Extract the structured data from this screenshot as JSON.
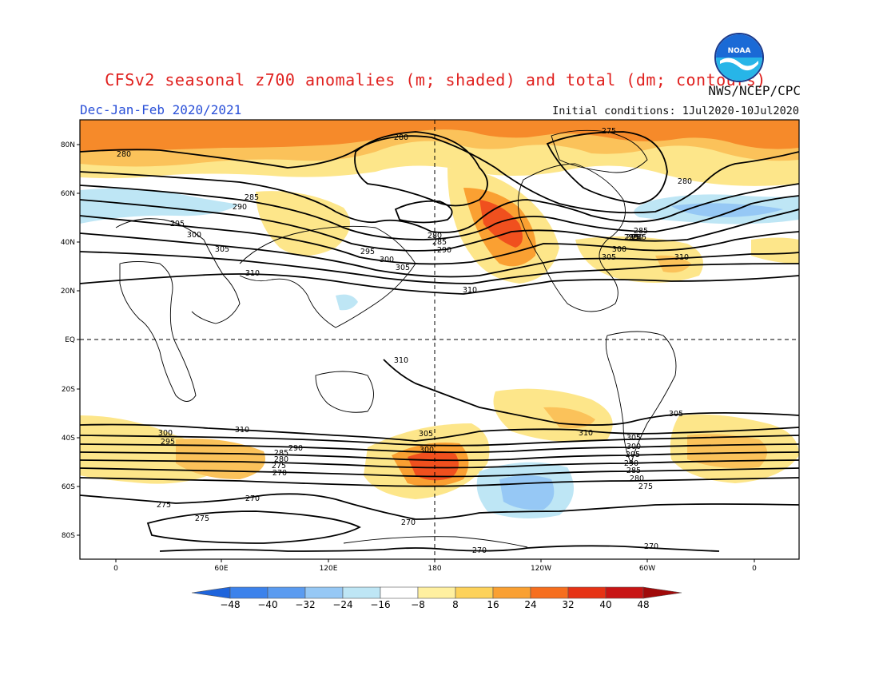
{
  "header": {
    "title": "CFSv2 seasonal z700 anomalies (m; shaded) and total (dm; contours)",
    "season": "Dec-Jan-Feb 2020/2021",
    "initial_conditions": "Initial conditions: 1Jul2020-10Jul2020",
    "agency": "NWS/NCEP/CPC",
    "logo_text": "NOAA"
  },
  "map": {
    "projection": "cylindrical equidistant",
    "lat_labels": [
      "80N",
      "60N",
      "40N",
      "20N",
      "EQ",
      "20S",
      "40S",
      "60S",
      "80S"
    ],
    "lon_labels": [
      "0",
      "60E",
      "120E",
      "180",
      "120W",
      "60W",
      "0"
    ],
    "contour_labels": [
      "280",
      "275",
      "280",
      "285",
      "290",
      "295",
      "300",
      "305",
      "310",
      "280",
      "285",
      "290",
      "295",
      "300",
      "305",
      "310",
      "310",
      "310",
      "310",
      "305",
      "300",
      "295",
      "290",
      "285",
      "280",
      "275",
      "270",
      "275",
      "270",
      "270",
      "270",
      "275",
      "270",
      "310",
      "305",
      "300",
      "310",
      "305",
      "300",
      "295",
      "290",
      "285",
      "280",
      "275",
      "270",
      "280",
      "285",
      "295",
      "300",
      "305",
      "310",
      "295",
      "290",
      "285"
    ]
  },
  "colorbar": {
    "tick_labels": [
      "-48",
      "-40",
      "-32",
      "-24",
      "-16",
      "-8",
      "8",
      "16",
      "24",
      "32",
      "40",
      "48"
    ],
    "colors": [
      "#1e64dc",
      "#3c82eb",
      "#5a9bf0",
      "#96c8f5",
      "#bee6f5",
      "#ffffff",
      "#fff0a0",
      "#fdd25a",
      "#faa032",
      "#f66e1e",
      "#e63214",
      "#c81414",
      "#a00a0a"
    ]
  }
}
